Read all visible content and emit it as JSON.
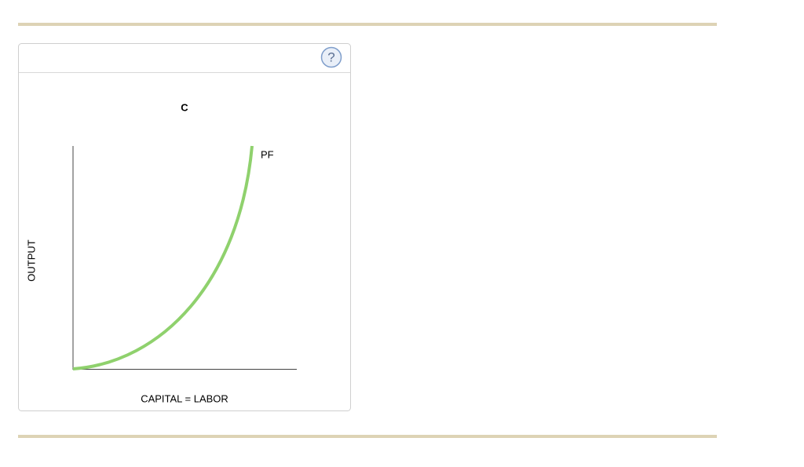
{
  "help": "?",
  "chart": {
    "title": "C",
    "curve_label": "PF",
    "y_axis_label": "OUTPUT",
    "x_axis_label": "CAPITAL = LABOR"
  }
}
